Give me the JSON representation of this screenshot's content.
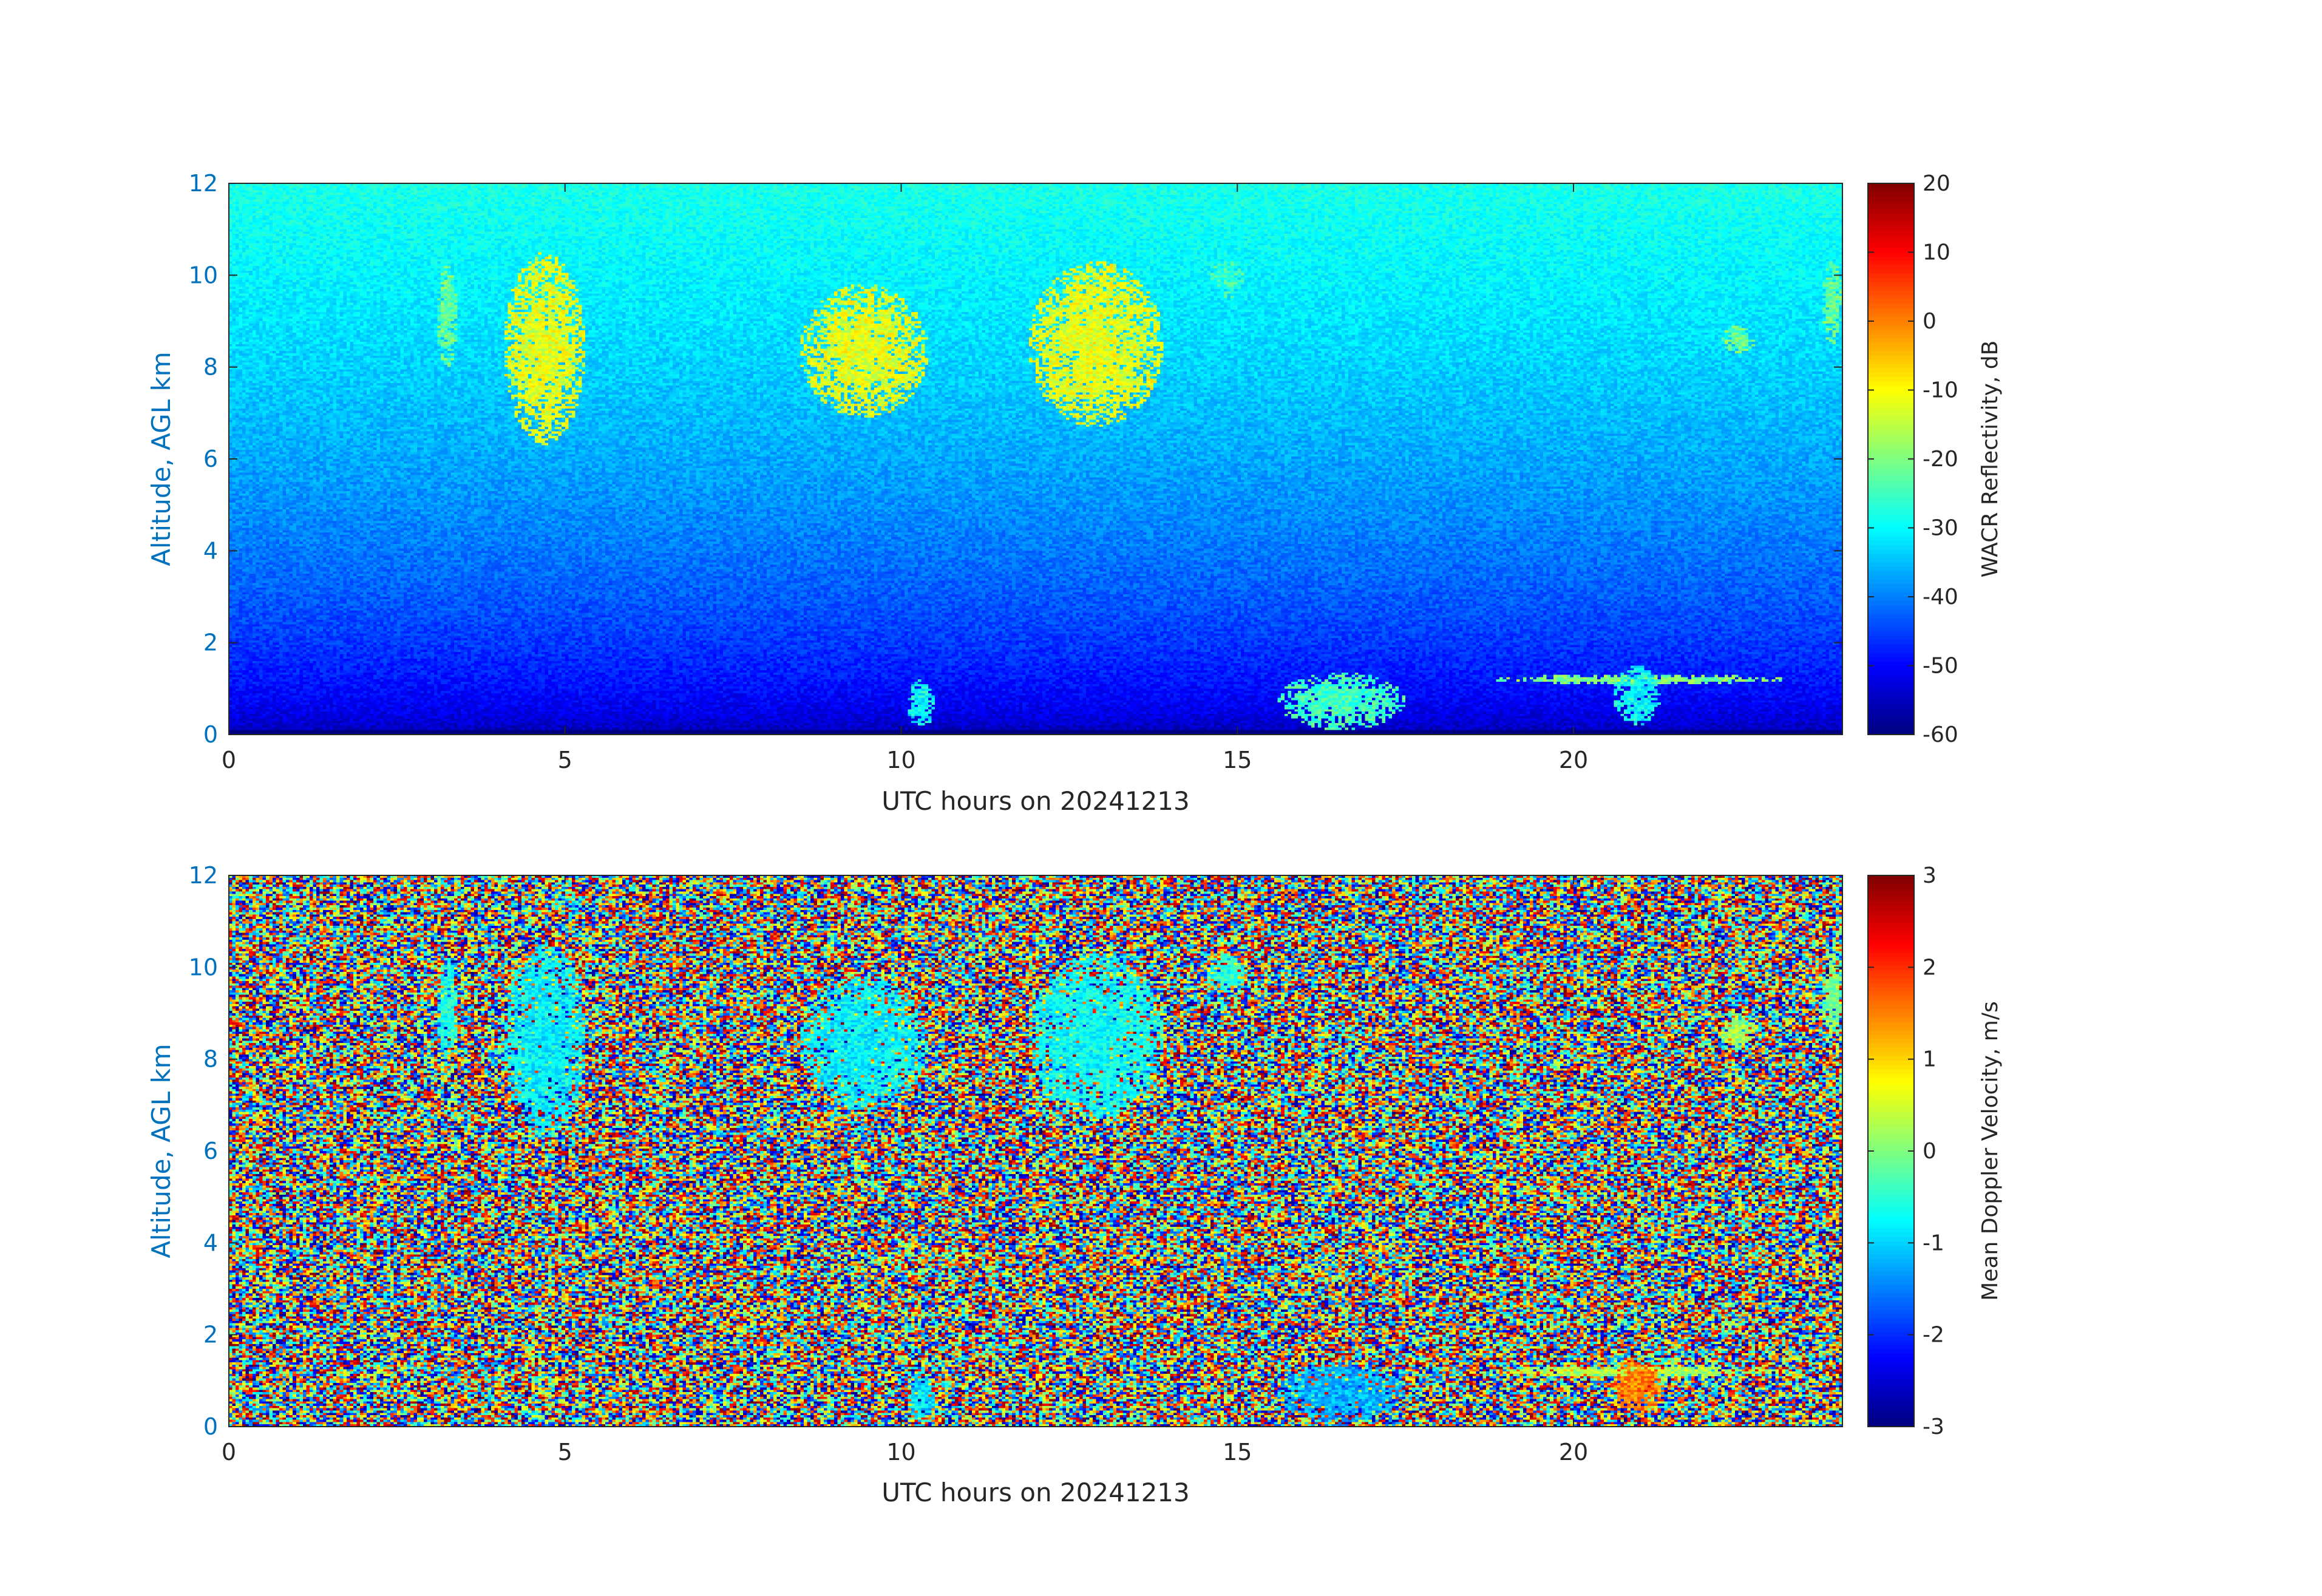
{
  "chart_data": [
    {
      "type": "heatmap",
      "xlabel": "UTC hours on 20241213",
      "ylabel": "Altitude, AGL km",
      "xlim": [
        0,
        24
      ],
      "ylim": [
        0,
        12
      ],
      "xticks": [
        0,
        5,
        10,
        15,
        20
      ],
      "yticks": [
        0,
        2,
        4,
        6,
        8,
        10,
        12
      ],
      "colorbar": {
        "label": "WACR Reflectivity, dB",
        "colormap": "jet",
        "range": [
          -60,
          20
        ],
        "ticks": [
          20,
          10,
          0,
          -10,
          -20,
          -30,
          -40,
          -50,
          -60
        ]
      },
      "axis_label_color": "#0072BD",
      "background_color_top": "#20c8f0",
      "background_color_bottom": "#0a1ea0",
      "features": [
        {
          "kind": "cirrus cloud",
          "x_range": [
            3.1,
            3.4
          ],
          "alt_range": [
            8.0,
            10.2
          ],
          "value": -22
        },
        {
          "kind": "cirrus cloud",
          "x_range": [
            4.1,
            5.3
          ],
          "alt_range": [
            6.3,
            10.5
          ],
          "value": -12
        },
        {
          "kind": "cirrus cloud",
          "x_range": [
            8.5,
            10.4
          ],
          "alt_range": [
            6.9,
            9.8
          ],
          "value": -12
        },
        {
          "kind": "cirrus cloud",
          "x_range": [
            11.9,
            13.9
          ],
          "alt_range": [
            6.7,
            10.3
          ],
          "value": -12
        },
        {
          "kind": "cirrus cloud",
          "x_range": [
            14.6,
            15.1
          ],
          "alt_range": [
            9.5,
            10.3
          ],
          "value": -26
        },
        {
          "kind": "cirrus cloud",
          "x_range": [
            22.2,
            22.7
          ],
          "alt_range": [
            8.3,
            8.9
          ],
          "value": -22
        },
        {
          "kind": "cirrus cloud",
          "x_range": [
            23.7,
            24.0
          ],
          "alt_range": [
            8.5,
            10.3
          ],
          "value": -22
        },
        {
          "kind": "low cloud",
          "x_range": [
            10.1,
            10.5
          ],
          "alt_range": [
            0.1,
            1.2
          ],
          "value": -30
        },
        {
          "kind": "low cloud",
          "x_range": [
            15.6,
            17.5
          ],
          "alt_range": [
            0.1,
            1.35
          ],
          "value": -25
        },
        {
          "kind": "low cloud",
          "x_range": [
            18.8,
            23.2
          ],
          "alt_range": [
            1.1,
            1.3
          ],
          "value": -20
        },
        {
          "kind": "low cloud",
          "x_range": [
            20.6,
            21.3
          ],
          "alt_range": [
            0.2,
            1.5
          ],
          "value": -30
        }
      ]
    },
    {
      "type": "heatmap",
      "xlabel": "UTC hours on 20241213",
      "ylabel": "Altitude, AGL km",
      "xlim": [
        0,
        24
      ],
      "ylim": [
        0,
        12
      ],
      "xticks": [
        0,
        5,
        10,
        15,
        20
      ],
      "yticks": [
        0,
        2,
        4,
        6,
        8,
        10,
        12
      ],
      "colorbar": {
        "label": "Mean Doppler Velocity, m/s",
        "colormap": "jet",
        "range": [
          -3,
          3
        ],
        "ticks": [
          3,
          2,
          1,
          0,
          -1,
          -2,
          -3
        ]
      },
      "axis_label_color": "#0072BD",
      "features": [
        {
          "kind": "cloud",
          "x_range": [
            3.1,
            3.4
          ],
          "alt_range": [
            8.0,
            10.2
          ],
          "value": -0.6
        },
        {
          "kind": "cloud",
          "x_range": [
            4.1,
            5.3
          ],
          "alt_range": [
            6.3,
            10.5
          ],
          "value": -0.8
        },
        {
          "kind": "cloud",
          "x_range": [
            8.5,
            10.4
          ],
          "alt_range": [
            6.9,
            9.8
          ],
          "value": -0.8
        },
        {
          "kind": "cloud",
          "x_range": [
            11.9,
            13.9
          ],
          "alt_range": [
            6.7,
            10.3
          ],
          "value": -0.7
        },
        {
          "kind": "cloud",
          "x_range": [
            14.6,
            15.1
          ],
          "alt_range": [
            9.5,
            10.3
          ],
          "value": -0.5
        },
        {
          "kind": "cloud",
          "x_range": [
            22.2,
            22.7
          ],
          "alt_range": [
            8.3,
            8.9
          ],
          "value": 0.2
        },
        {
          "kind": "cloud",
          "x_range": [
            23.7,
            24.0
          ],
          "alt_range": [
            8.5,
            10.3
          ],
          "value": 0.0
        },
        {
          "kind": "cloud",
          "x_range": [
            10.1,
            10.5
          ],
          "alt_range": [
            0.1,
            1.2
          ],
          "value": -0.9
        },
        {
          "kind": "cloud",
          "x_range": [
            15.6,
            17.5
          ],
          "alt_range": [
            0.1,
            1.35
          ],
          "value": -1.2
        },
        {
          "kind": "cloud",
          "x_range": [
            18.8,
            23.2
          ],
          "alt_range": [
            1.1,
            1.3
          ],
          "value": 0.3
        },
        {
          "kind": "cloud",
          "x_range": [
            20.6,
            21.3
          ],
          "alt_range": [
            0.2,
            1.5
          ],
          "value": 1.5
        }
      ]
    }
  ]
}
